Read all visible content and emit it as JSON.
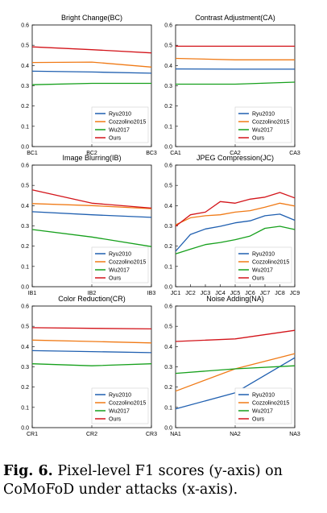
{
  "figure": {
    "caption_label": "Fig. 6.",
    "caption_text": "Pixel-level F1 scores (y-axis) on CoMoFoD under attacks (x-axis)."
  },
  "colors": {
    "Ryu2010": "#1f5fb0",
    "Cozzolino2015": "#f07a16",
    "Wu2017": "#16a01c",
    "Ours": "#d3141a"
  },
  "chart_data": [
    {
      "type": "line",
      "title": "Bright Change(BC)",
      "x": [
        "BC1",
        "BC2",
        "BC3"
      ],
      "ylim": [
        0,
        0.6
      ],
      "yticks": [
        0,
        0.1,
        0.2,
        0.3,
        0.4,
        0.5,
        0.6
      ],
      "legend": "bottom-right",
      "series": [
        {
          "name": "Ryu2010",
          "values": [
            0.372,
            0.368,
            0.362
          ]
        },
        {
          "name": "Cozzolino2015",
          "values": [
            0.415,
            0.417,
            0.392
          ]
        },
        {
          "name": "Wu2017",
          "values": [
            0.305,
            0.312,
            0.312
          ]
        },
        {
          "name": "Ours",
          "values": [
            0.492,
            0.478,
            0.462
          ]
        }
      ]
    },
    {
      "type": "line",
      "title": "Contrast Adjustment(CA)",
      "x": [
        "CA1",
        "CA2",
        "CA3"
      ],
      "ylim": [
        0,
        0.6
      ],
      "yticks": [
        0,
        0.1,
        0.2,
        0.3,
        0.4,
        0.5,
        0.6
      ],
      "legend": "bottom-right",
      "series": [
        {
          "name": "Ryu2010",
          "values": [
            0.383,
            0.382,
            0.382
          ]
        },
        {
          "name": "Cozzolino2015",
          "values": [
            0.435,
            0.428,
            0.428
          ]
        },
        {
          "name": "Wu2017",
          "values": [
            0.308,
            0.308,
            0.318
          ]
        },
        {
          "name": "Ours",
          "values": [
            0.495,
            0.495,
            0.495
          ]
        }
      ]
    },
    {
      "type": "line",
      "title": "Image Blurring(IB)",
      "x": [
        "IB1",
        "IB2",
        "IB3"
      ],
      "ylim": [
        0,
        0.6
      ],
      "yticks": [
        0,
        0.1,
        0.2,
        0.3,
        0.4,
        0.5,
        0.6
      ],
      "legend": "bottom-right",
      "series": [
        {
          "name": "Ryu2010",
          "values": [
            0.37,
            0.355,
            0.342
          ]
        },
        {
          "name": "Cozzolino2015",
          "values": [
            0.41,
            0.4,
            0.385
          ]
        },
        {
          "name": "Wu2017",
          "values": [
            0.282,
            0.245,
            0.198
          ]
        },
        {
          "name": "Ours",
          "values": [
            0.478,
            0.412,
            0.388
          ]
        }
      ]
    },
    {
      "type": "line",
      "title": "JPEG Compression(JC)",
      "x": [
        "JC1",
        "JC2",
        "JC3",
        "JC4",
        "JC5",
        "JC6",
        "JC7",
        "JC8",
        "JC9"
      ],
      "ylim": [
        0,
        0.6
      ],
      "yticks": [
        0,
        0.1,
        0.2,
        0.3,
        0.4,
        0.5,
        0.6
      ],
      "legend": "bottom-right",
      "series": [
        {
          "name": "Ryu2010",
          "values": [
            0.175,
            0.258,
            0.285,
            0.298,
            0.315,
            0.325,
            0.35,
            0.358,
            0.328
          ]
        },
        {
          "name": "Cozzolino2015",
          "values": [
            0.305,
            0.34,
            0.35,
            0.355,
            0.368,
            0.375,
            0.392,
            0.412,
            0.398
          ]
        },
        {
          "name": "Wu2017",
          "values": [
            0.162,
            0.185,
            0.208,
            0.218,
            0.232,
            0.25,
            0.288,
            0.298,
            0.282
          ]
        },
        {
          "name": "Ours",
          "values": [
            0.298,
            0.355,
            0.368,
            0.42,
            0.412,
            0.432,
            0.442,
            0.465,
            0.438
          ]
        }
      ]
    },
    {
      "type": "line",
      "title": "Color Reduction(CR)",
      "x": [
        "CR1",
        "CR2",
        "CR3"
      ],
      "ylim": [
        0,
        0.6
      ],
      "yticks": [
        0,
        0.1,
        0.2,
        0.3,
        0.4,
        0.5,
        0.6
      ],
      "legend": "bottom-right",
      "series": [
        {
          "name": "Ryu2010",
          "values": [
            0.38,
            0.375,
            0.37
          ]
        },
        {
          "name": "Cozzolino2015",
          "values": [
            0.432,
            0.425,
            0.418
          ]
        },
        {
          "name": "Wu2017",
          "values": [
            0.315,
            0.305,
            0.315
          ]
        },
        {
          "name": "Ours",
          "values": [
            0.493,
            0.49,
            0.487
          ]
        }
      ]
    },
    {
      "type": "line",
      "title": "Noise Adding(NA)",
      "x": [
        "NA1",
        "NA2",
        "NA3"
      ],
      "ylim": [
        0,
        0.6
      ],
      "yticks": [
        0,
        0.1,
        0.2,
        0.3,
        0.4,
        0.5,
        0.6
      ],
      "legend": "bottom-right",
      "series": [
        {
          "name": "Ryu2010",
          "values": [
            0.092,
            0.172,
            0.345
          ]
        },
        {
          "name": "Cozzolino2015",
          "values": [
            0.18,
            0.29,
            0.365
          ]
        },
        {
          "name": "Wu2017",
          "values": [
            0.268,
            0.29,
            0.305
          ]
        },
        {
          "name": "Ours",
          "values": [
            0.425,
            0.438,
            0.48
          ]
        }
      ]
    }
  ]
}
